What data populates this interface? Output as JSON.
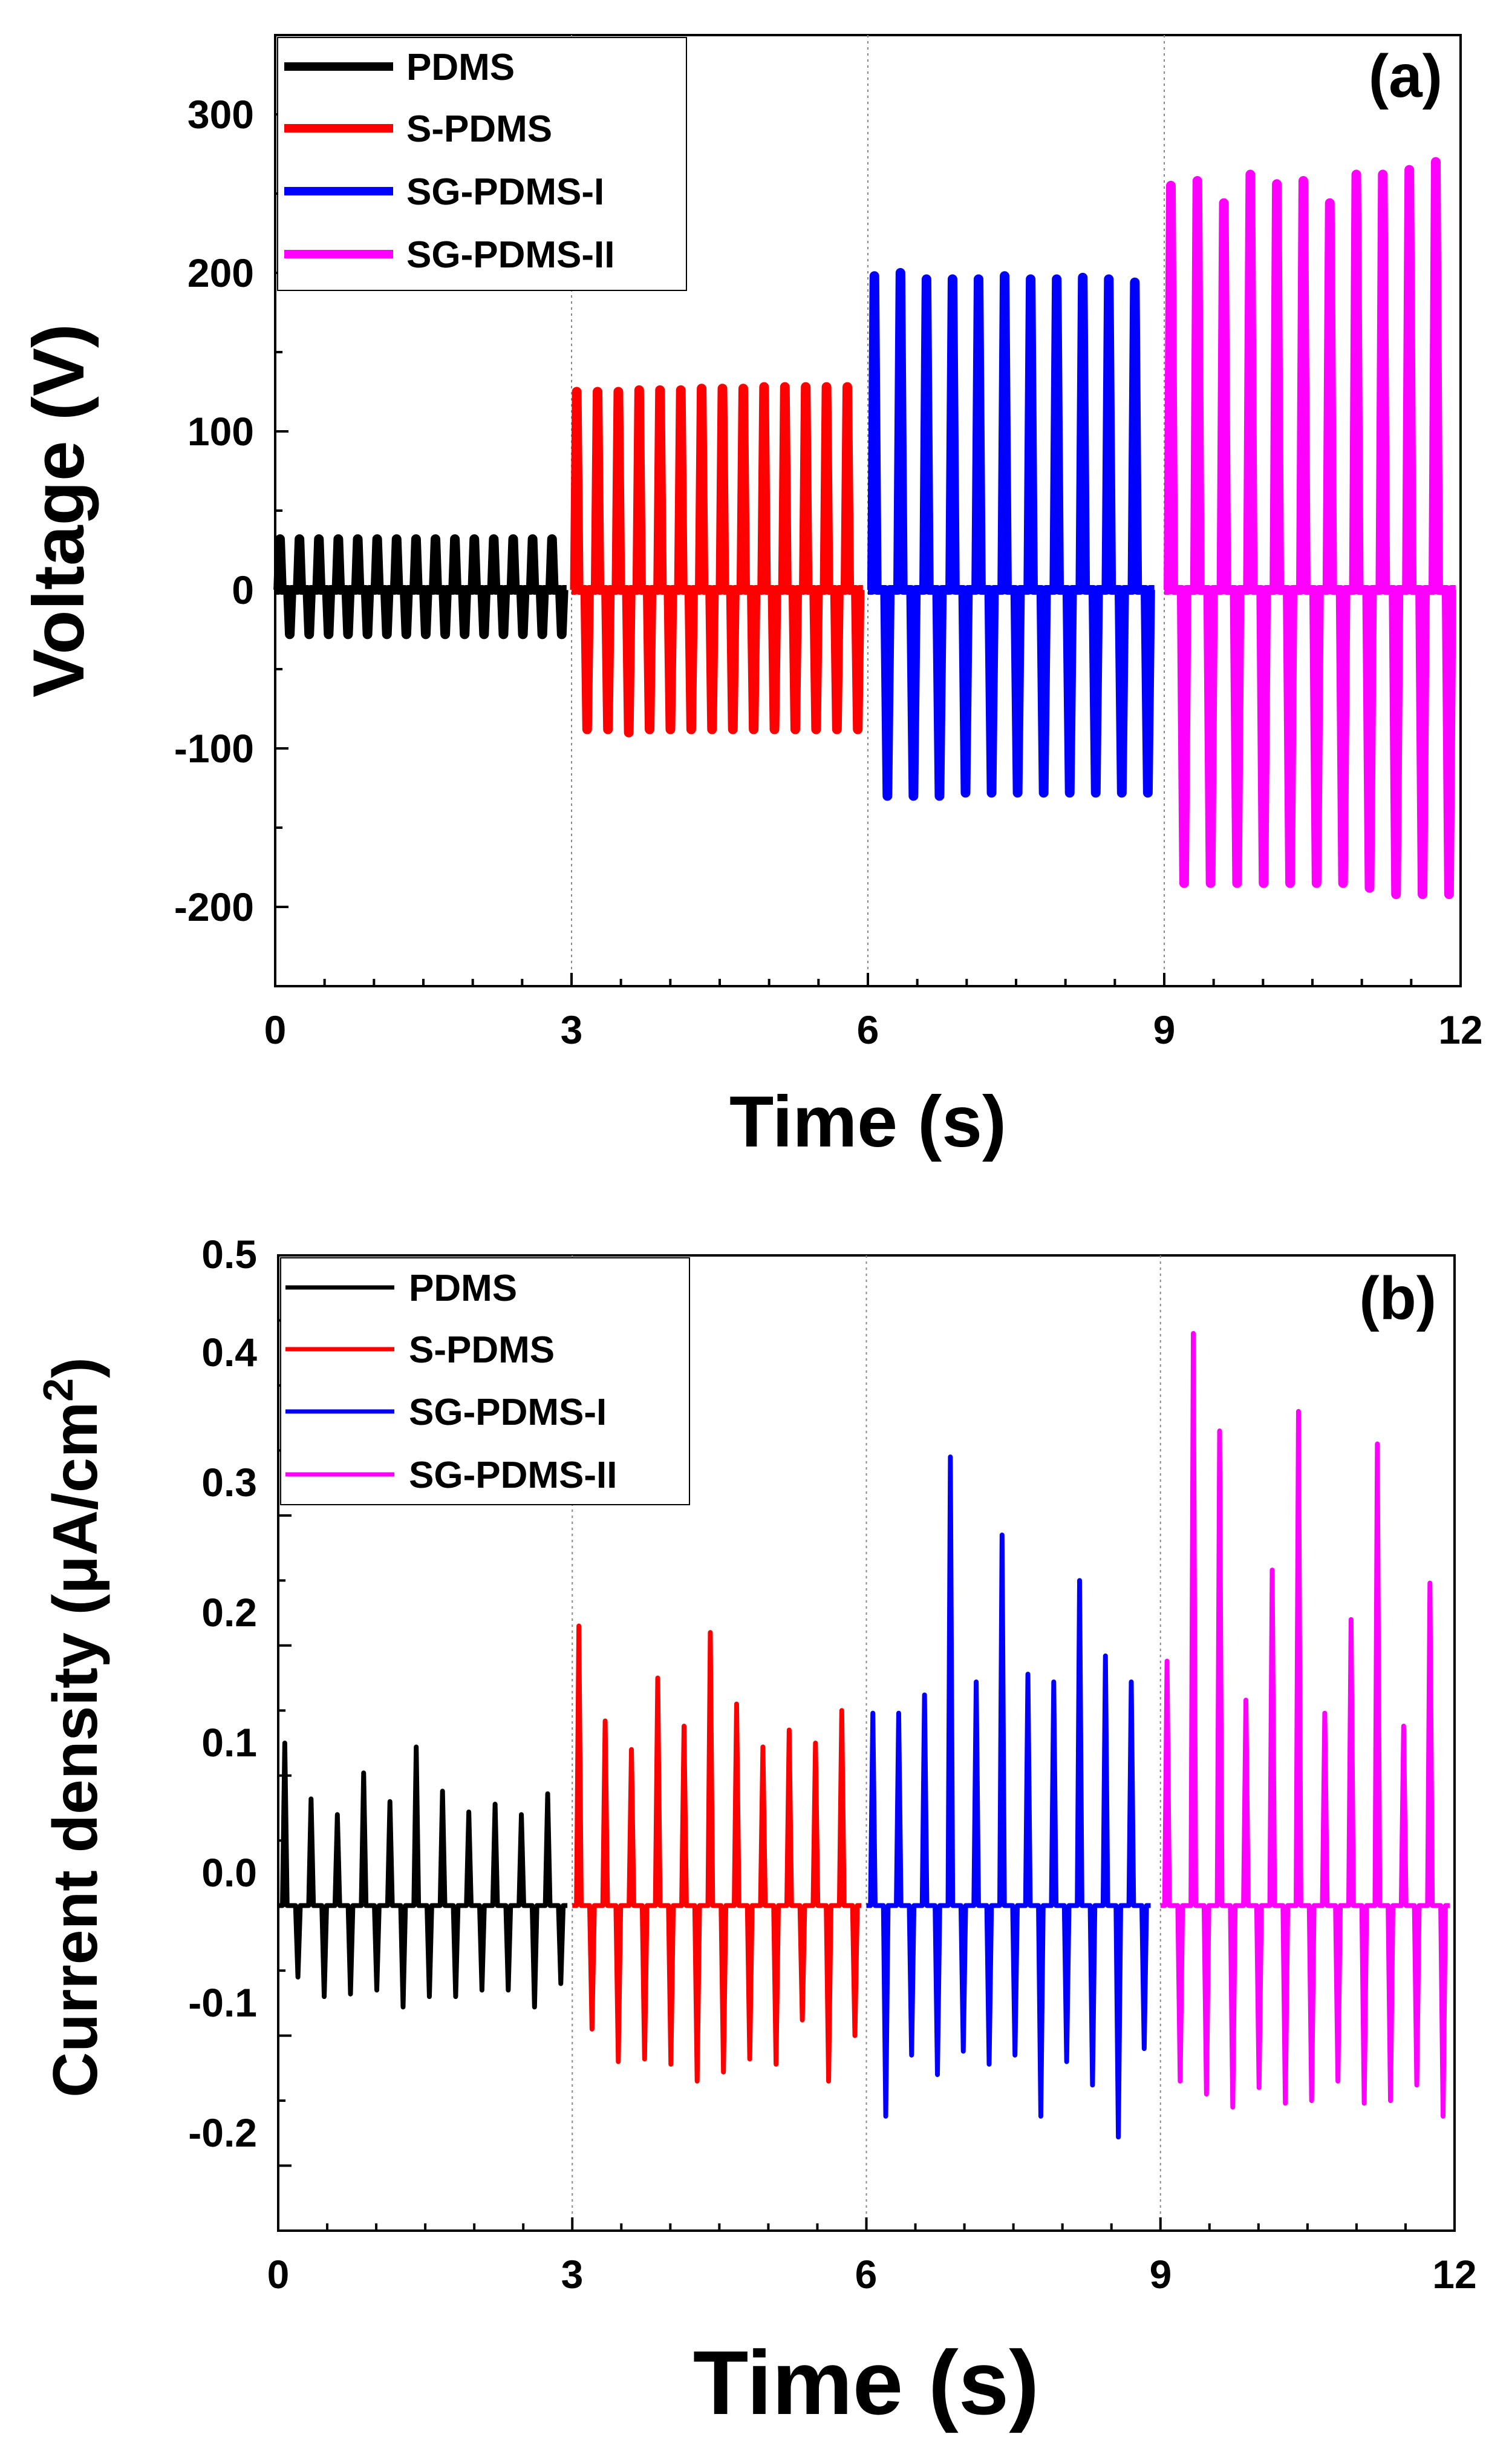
{
  "chart_data": [
    {
      "type": "line",
      "panel_label": "(a)",
      "xlabel": "Time (s)",
      "ylabel": "Voltage (V)",
      "xlim": [
        0,
        12
      ],
      "ylim": [
        -250,
        350
      ],
      "xticks": [
        0,
        3,
        6,
        9,
        12
      ],
      "yticks": [
        -200,
        -100,
        0,
        100,
        200,
        300
      ],
      "x_tick_labels": [
        "0",
        "3",
        "6",
        "9",
        "12"
      ],
      "y_tick_labels": [
        "-200",
        "-100",
        "0",
        "100",
        "200",
        "300"
      ],
      "dividers_x": [
        3,
        6,
        9
      ],
      "legend_position": "top-left",
      "series": [
        {
          "name": "PDMS",
          "color": "#000000",
          "x_range": [
            0,
            2.95
          ],
          "pos_peaks": [
            32,
            32,
            32,
            32,
            32,
            32,
            32,
            32,
            32,
            32,
            32,
            32,
            32,
            32,
            32
          ],
          "neg_peaks": [
            -28,
            -28,
            -28,
            -28,
            -28,
            -28,
            -28,
            -28,
            -28,
            -28,
            -28,
            -28,
            -28,
            -28,
            -28
          ]
        },
        {
          "name": "S-PDMS",
          "color": "#ff0000",
          "x_range": [
            3.0,
            5.95
          ],
          "pos_peaks": [
            125,
            125,
            125,
            126,
            126,
            126,
            127,
            127,
            127,
            128,
            128,
            128,
            128,
            128
          ],
          "neg_peaks": [
            -88,
            -88,
            -90,
            -88,
            -88,
            -88,
            -88,
            -88,
            -88,
            -88,
            -88,
            -88,
            -88,
            -88
          ]
        },
        {
          "name": "SG-PDMS-I",
          "color": "#0000ff",
          "x_range": [
            6.0,
            8.9
          ],
          "pos_peaks": [
            198,
            200,
            196,
            196,
            196,
            198,
            196,
            196,
            197,
            196,
            194
          ],
          "neg_peaks": [
            -130,
            -130,
            -130,
            -128,
            -128,
            -128,
            -128,
            -128,
            -128,
            -128,
            -128
          ]
        },
        {
          "name": "SG-PDMS-II",
          "color": "#ff00ff",
          "x_range": [
            9.0,
            11.95
          ],
          "pos_peaks": [
            255,
            258,
            244,
            262,
            256,
            258,
            244,
            262,
            262,
            265,
            270
          ],
          "neg_peaks": [
            -185,
            -185,
            -185,
            -185,
            -185,
            -185,
            -185,
            -188,
            -192,
            -192,
            -192
          ]
        }
      ]
    },
    {
      "type": "line",
      "panel_label": "(b)",
      "xlabel": "Time (s)",
      "ylabel_main": "Current density (μA/cm",
      "ylabel_sup": "2",
      "ylabel_close": ")",
      "xlim": [
        0,
        12
      ],
      "ylim": [
        -0.25,
        0.5
      ],
      "xticks": [
        0,
        3,
        6,
        9,
        12
      ],
      "yticks": [
        -0.2,
        -0.1,
        0.0,
        0.1,
        0.2,
        0.3,
        0.4,
        0.5
      ],
      "x_tick_labels": [
        "0",
        "3",
        "6",
        "9",
        "12"
      ],
      "y_tick_labels": [
        "-0.2",
        "-0.1",
        "0.0",
        "0.1",
        "0.2",
        "0.3",
        "0.4",
        "0.5"
      ],
      "dividers_x": [
        3,
        6,
        9
      ],
      "legend_position": "top-left",
      "series": [
        {
          "name": "PDMS",
          "color": "#000000",
          "x_range": [
            0,
            2.95
          ],
          "pos_peaks": [
            0.125,
            0.082,
            0.07,
            0.102,
            0.08,
            0.122,
            0.088,
            0.072,
            0.078,
            0.07,
            0.086
          ],
          "neg_peaks": [
            -0.055,
            -0.07,
            -0.068,
            -0.065,
            -0.078,
            -0.07,
            -0.07,
            -0.065,
            -0.065,
            -0.078,
            -0.06
          ]
        },
        {
          "name": "S-PDMS",
          "color": "#ff0000",
          "x_range": [
            3.0,
            5.95
          ],
          "pos_peaks": [
            0.215,
            0.142,
            0.12,
            0.175,
            0.138,
            0.21,
            0.155,
            0.122,
            0.135,
            0.125,
            0.15
          ],
          "neg_peaks": [
            -0.095,
            -0.12,
            -0.118,
            -0.122,
            -0.135,
            -0.128,
            -0.118,
            -0.122,
            -0.088,
            -0.135,
            -0.1
          ]
        },
        {
          "name": "SG-PDMS-I",
          "color": "#0000ff",
          "x_range": [
            6.0,
            8.9
          ],
          "pos_peaks": [
            0.148,
            0.148,
            0.162,
            0.345,
            0.172,
            0.285,
            0.178,
            0.172,
            0.25,
            0.192,
            0.172
          ],
          "neg_peaks": [
            -0.162,
            -0.115,
            -0.13,
            -0.112,
            -0.122,
            -0.115,
            -0.162,
            -0.12,
            -0.138,
            -0.178,
            -0.11
          ]
        },
        {
          "name": "SG-PDMS-II",
          "color": "#ff00ff",
          "x_range": [
            9.0,
            11.95
          ],
          "pos_peaks": [
            0.188,
            0.44,
            0.365,
            0.158,
            0.258,
            0.38,
            0.148,
            0.22,
            0.355,
            0.138,
            0.248
          ],
          "neg_peaks": [
            -0.135,
            -0.145,
            -0.155,
            -0.14,
            -0.152,
            -0.15,
            -0.135,
            -0.152,
            -0.15,
            -0.138,
            -0.162
          ]
        }
      ]
    }
  ]
}
